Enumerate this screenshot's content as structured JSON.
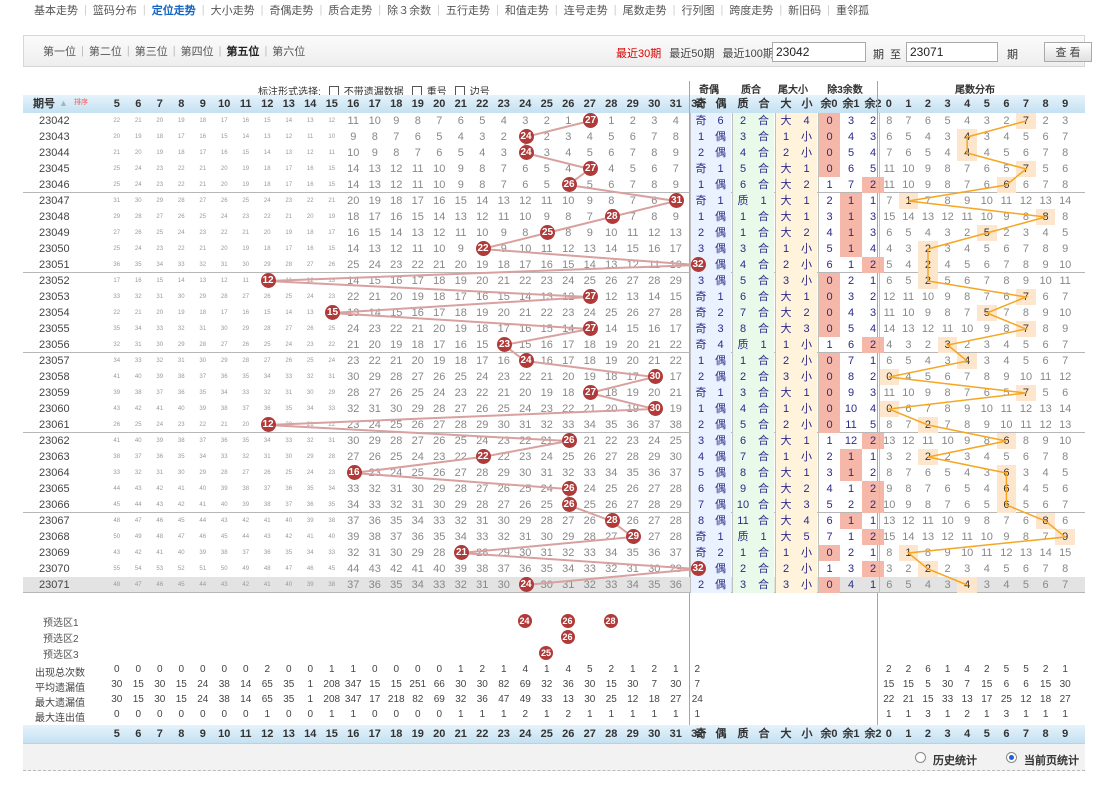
{
  "nav": [
    {
      "label": "基本走势",
      "active": false
    },
    {
      "label": "篮码分布",
      "active": false
    },
    {
      "label": "定位走势",
      "active": true
    },
    {
      "label": "大小走势",
      "active": false
    },
    {
      "label": "奇偶走势",
      "active": false
    },
    {
      "label": "质合走势",
      "active": false
    },
    {
      "label": "除３余数",
      "active": false
    },
    {
      "label": "五行走势",
      "active": false
    },
    {
      "label": "和值走势",
      "active": false
    },
    {
      "label": "连号走势",
      "active": false
    },
    {
      "label": "尾数走势",
      "active": false
    },
    {
      "label": "行列图",
      "active": false
    },
    {
      "label": "跨度走势",
      "active": false
    },
    {
      "label": "新旧码",
      "active": false
    },
    {
      "label": "重邻孤",
      "active": false
    }
  ],
  "positions": [
    {
      "label": "第一位",
      "active": false
    },
    {
      "label": "第二位",
      "active": false
    },
    {
      "label": "第三位",
      "active": false
    },
    {
      "label": "第四位",
      "active": false
    },
    {
      "label": "第五位",
      "active": true
    },
    {
      "label": "第六位",
      "active": false
    }
  ],
  "period_links": [
    {
      "label": "最近30期",
      "active": true
    },
    {
      "label": "最近50期",
      "active": false
    },
    {
      "label": "最近100期",
      "active": false
    }
  ],
  "period_from": "23042",
  "period_to": "23071",
  "label_qi": "期",
  "label_zhi": "至",
  "query_button": "查 看",
  "filter": {
    "title": "标注形式选择:",
    "opt1": "不带遗漏数据",
    "opt2": "重号",
    "opt3": "边号"
  },
  "header_groups": {
    "parity": "奇偶",
    "comp": "质合",
    "size": "尾大小",
    "mod3": "除3余数",
    "tail": "尾数分布"
  },
  "header_period": "期号",
  "header_sort": "排序",
  "sub_headers": {
    "odd": "奇",
    "even": "偶",
    "prime": "质",
    "comp": "合",
    "big": "大",
    "small": "小",
    "r0": "余0",
    "r1": "余1",
    "r2": "余2"
  },
  "number_cols": [
    "5",
    "6",
    "7",
    "8",
    "9",
    "10",
    "11",
    "12",
    "13",
    "14",
    "15",
    "16",
    "17",
    "18",
    "19",
    "20",
    "21",
    "22",
    "23",
    "24",
    "25",
    "26",
    "27",
    "28",
    "29",
    "30",
    "31",
    "32"
  ],
  "tail_cols": [
    "0",
    "1",
    "2",
    "3",
    "4",
    "5",
    "6",
    "7",
    "8",
    "9"
  ],
  "rows": [
    {
      "p": "23042",
      "h": 27,
      "par": [
        "奇",
        "6"
      ],
      "com": [
        "2",
        "合"
      ],
      "sz": [
        "大",
        "4"
      ],
      "m3": [
        "0",
        "3",
        "2"
      ],
      "mh": 0,
      "t": 7
    },
    {
      "p": "23043",
      "h": 24,
      "par": [
        "1",
        "偶"
      ],
      "com": [
        "3",
        "合"
      ],
      "sz": [
        "1",
        "小"
      ],
      "m3": [
        "0",
        "4",
        "3"
      ],
      "mh": 0,
      "t": 4
    },
    {
      "p": "23044",
      "h": 24,
      "par": [
        "2",
        "偶"
      ],
      "com": [
        "4",
        "合"
      ],
      "sz": [
        "2",
        "小"
      ],
      "m3": [
        "0",
        "5",
        "4"
      ],
      "mh": 0,
      "t": 4
    },
    {
      "p": "23045",
      "h": 27,
      "par": [
        "奇",
        "1"
      ],
      "com": [
        "5",
        "合"
      ],
      "sz": [
        "大",
        "1"
      ],
      "m3": [
        "0",
        "6",
        "5"
      ],
      "mh": 0,
      "t": 7
    },
    {
      "p": "23046",
      "h": 26,
      "par": [
        "1",
        "偶"
      ],
      "com": [
        "6",
        "合"
      ],
      "sz": [
        "大",
        "2"
      ],
      "m3": [
        "1",
        "7",
        "2"
      ],
      "mh": 2,
      "t": 6
    },
    {
      "p": "23047",
      "h": 31,
      "par": [
        "奇",
        "1"
      ],
      "com": [
        "质",
        "1"
      ],
      "sz": [
        "大",
        "1"
      ],
      "m3": [
        "2",
        "1",
        "1"
      ],
      "mh": 1,
      "t": 1
    },
    {
      "p": "23048",
      "h": 28,
      "par": [
        "1",
        "偶"
      ],
      "com": [
        "1",
        "合"
      ],
      "sz": [
        "大",
        "1"
      ],
      "m3": [
        "3",
        "1",
        "3"
      ],
      "mh": 1,
      "t": 8
    },
    {
      "p": "23049",
      "h": 25,
      "par": [
        "2",
        "偶"
      ],
      "com": [
        "1",
        "合"
      ],
      "sz": [
        "大",
        "2"
      ],
      "m3": [
        "4",
        "1",
        "3"
      ],
      "mh": 1,
      "t": 5
    },
    {
      "p": "23050",
      "h": 22,
      "par": [
        "3",
        "偶"
      ],
      "com": [
        "3",
        "合"
      ],
      "sz": [
        "1",
        "小"
      ],
      "m3": [
        "5",
        "1",
        "4"
      ],
      "mh": 1,
      "t": 2
    },
    {
      "p": "23051",
      "h": 32,
      "par": [
        "4",
        "偶"
      ],
      "com": [
        "4",
        "合"
      ],
      "sz": [
        "2",
        "小"
      ],
      "m3": [
        "6",
        "1",
        "2"
      ],
      "mh": 2,
      "t": 2
    },
    {
      "p": "23052",
      "h": 12,
      "par": [
        "3",
        "偶"
      ],
      "com": [
        "5",
        "合"
      ],
      "sz": [
        "3",
        "小"
      ],
      "m3": [
        "0",
        "2",
        "1"
      ],
      "mh": 0,
      "t": 2
    },
    {
      "p": "23053",
      "h": 27,
      "par": [
        "奇",
        "1"
      ],
      "com": [
        "6",
        "合"
      ],
      "sz": [
        "大",
        "1"
      ],
      "m3": [
        "0",
        "3",
        "2"
      ],
      "mh": 0,
      "t": 7
    },
    {
      "p": "23054",
      "h": 15,
      "par": [
        "奇",
        "2"
      ],
      "com": [
        "7",
        "合"
      ],
      "sz": [
        "大",
        "2"
      ],
      "m3": [
        "0",
        "4",
        "3"
      ],
      "mh": 0,
      "t": 5
    },
    {
      "p": "23055",
      "h": 27,
      "par": [
        "奇",
        "3"
      ],
      "com": [
        "8",
        "合"
      ],
      "sz": [
        "大",
        "3"
      ],
      "m3": [
        "0",
        "5",
        "4"
      ],
      "mh": 0,
      "t": 7
    },
    {
      "p": "23056",
      "h": 23,
      "par": [
        "奇",
        "4"
      ],
      "com": [
        "质",
        "1"
      ],
      "sz": [
        "1",
        "小"
      ],
      "m3": [
        "1",
        "6",
        "2"
      ],
      "mh": 2,
      "t": 3
    },
    {
      "p": "23057",
      "h": 24,
      "par": [
        "1",
        "偶"
      ],
      "com": [
        "1",
        "合"
      ],
      "sz": [
        "2",
        "小"
      ],
      "m3": [
        "0",
        "7",
        "1"
      ],
      "mh": 0,
      "t": 4
    },
    {
      "p": "23058",
      "h": 30,
      "par": [
        "2",
        "偶"
      ],
      "com": [
        "2",
        "合"
      ],
      "sz": [
        "3",
        "小"
      ],
      "m3": [
        "0",
        "8",
        "2"
      ],
      "mh": 0,
      "t": 0
    },
    {
      "p": "23059",
      "h": 27,
      "par": [
        "奇",
        "1"
      ],
      "com": [
        "3",
        "合"
      ],
      "sz": [
        "大",
        "1"
      ],
      "m3": [
        "0",
        "9",
        "3"
      ],
      "mh": 0,
      "t": 7
    },
    {
      "p": "23060",
      "h": 30,
      "par": [
        "1",
        "偶"
      ],
      "com": [
        "4",
        "合"
      ],
      "sz": [
        "1",
        "小"
      ],
      "m3": [
        "0",
        "10",
        "4"
      ],
      "mh": 0,
      "t": 0
    },
    {
      "p": "23061",
      "h": 12,
      "par": [
        "2",
        "偶"
      ],
      "com": [
        "5",
        "合"
      ],
      "sz": [
        "2",
        "小"
      ],
      "m3": [
        "0",
        "11",
        "5"
      ],
      "mh": 0,
      "t": 2
    },
    {
      "p": "23062",
      "h": 26,
      "par": [
        "3",
        "偶"
      ],
      "com": [
        "6",
        "合"
      ],
      "sz": [
        "大",
        "1"
      ],
      "m3": [
        "1",
        "12",
        "2"
      ],
      "mh": 2,
      "t": 6
    },
    {
      "p": "23063",
      "h": 22,
      "par": [
        "4",
        "偶"
      ],
      "com": [
        "7",
        "合"
      ],
      "sz": [
        "1",
        "小"
      ],
      "m3": [
        "2",
        "1",
        "1"
      ],
      "mh": 1,
      "t": 2
    },
    {
      "p": "23064",
      "h": 16,
      "par": [
        "5",
        "偶"
      ],
      "com": [
        "8",
        "合"
      ],
      "sz": [
        "大",
        "1"
      ],
      "m3": [
        "3",
        "1",
        "2"
      ],
      "mh": 1,
      "t": 6
    },
    {
      "p": "23065",
      "h": 26,
      "par": [
        "6",
        "偶"
      ],
      "com": [
        "9",
        "合"
      ],
      "sz": [
        "大",
        "2"
      ],
      "m3": [
        "4",
        "1",
        "2"
      ],
      "mh": 2,
      "t": 6
    },
    {
      "p": "23066",
      "h": 26,
      "par": [
        "7",
        "偶"
      ],
      "com": [
        "10",
        "合"
      ],
      "sz": [
        "大",
        "3"
      ],
      "m3": [
        "5",
        "2",
        "2"
      ],
      "mh": 2,
      "t": 6
    },
    {
      "p": "23067",
      "h": 28,
      "par": [
        "8",
        "偶"
      ],
      "com": [
        "11",
        "合"
      ],
      "sz": [
        "大",
        "4"
      ],
      "m3": [
        "6",
        "1",
        "1"
      ],
      "mh": 1,
      "t": 8
    },
    {
      "p": "23068",
      "h": 29,
      "par": [
        "奇",
        "1"
      ],
      "com": [
        "质",
        "1"
      ],
      "sz": [
        "大",
        "5"
      ],
      "m3": [
        "7",
        "1",
        "2"
      ],
      "mh": 2,
      "t": 9
    },
    {
      "p": "23069",
      "h": 21,
      "par": [
        "奇",
        "2"
      ],
      "com": [
        "1",
        "合"
      ],
      "sz": [
        "1",
        "小"
      ],
      "m3": [
        "0",
        "2",
        "1"
      ],
      "mh": 0,
      "t": 1
    },
    {
      "p": "23070",
      "h": 32,
      "par": [
        "1",
        "偶"
      ],
      "com": [
        "2",
        "合"
      ],
      "sz": [
        "2",
        "小"
      ],
      "m3": [
        "1",
        "3",
        "2"
      ],
      "mh": 2,
      "t": 2
    },
    {
      "p": "23071",
      "h": 24,
      "par": [
        "2",
        "偶"
      ],
      "com": [
        "3",
        "合"
      ],
      "sz": [
        "3",
        "小"
      ],
      "m3": [
        "0",
        "4",
        "1"
      ],
      "mh": 0,
      "t": 4
    }
  ],
  "pre_rows": [
    {
      "label": "预选区1",
      "balls": [
        "24",
        "26",
        "28"
      ]
    },
    {
      "label": "预选区2",
      "balls": [
        "26"
      ]
    },
    {
      "label": "预选区3",
      "balls": [
        "25"
      ]
    }
  ],
  "stats": [
    {
      "label": "出现总次数",
      "vals": [
        "0",
        "0",
        "0",
        "0",
        "0",
        "0",
        "0",
        "2",
        "0",
        "0",
        "1",
        "1",
        "0",
        "0",
        "0",
        "0",
        "1",
        "2",
        "1",
        "4",
        "1",
        "4",
        "5",
        "2",
        "1",
        "2",
        "1",
        "2"
      ],
      "tail": [
        "2",
        "2",
        "6",
        "1",
        "4",
        "2",
        "5",
        "5",
        "2",
        "1"
      ]
    },
    {
      "label": "平均遗漏值",
      "vals": [
        "30",
        "15",
        "30",
        "15",
        "24",
        "38",
        "14",
        "65",
        "35",
        "1",
        "208",
        "347",
        "15",
        "15",
        "251",
        "66",
        "30",
        "30",
        "82",
        "69",
        "32",
        "36",
        "30",
        "15",
        "30",
        "7",
        "30",
        "7"
      ],
      "tail": [
        "15",
        "15",
        "5",
        "30",
        "7",
        "15",
        "6",
        "6",
        "15",
        "30"
      ]
    },
    {
      "label": "最大遗漏值",
      "vals": [
        "30",
        "15",
        "30",
        "15",
        "24",
        "38",
        "14",
        "65",
        "35",
        "1",
        "208",
        "347",
        "17",
        "218",
        "82",
        "69",
        "32",
        "36",
        "47",
        "49",
        "33",
        "13",
        "30",
        "25",
        "12",
        "18",
        "27",
        "24"
      ],
      "tail": [
        "22",
        "21",
        "15",
        "33",
        "13",
        "17",
        "25",
        "12",
        "18",
        "27"
      ]
    },
    {
      "label": "最大连出值",
      "vals": [
        "0",
        "0",
        "0",
        "0",
        "0",
        "0",
        "0",
        "1",
        "0",
        "0",
        "1",
        "1",
        "0",
        "0",
        "0",
        "0",
        "1",
        "1",
        "1",
        "2",
        "1",
        "2",
        "1",
        "1",
        "1",
        "1",
        "1",
        "1"
      ],
      "tail": [
        "1",
        "1",
        "3",
        "1",
        "2",
        "1",
        "3",
        "1",
        "1",
        "1"
      ]
    }
  ],
  "bottom": {
    "opt1": "历史统计",
    "opt2": "当前页统计"
  }
}
